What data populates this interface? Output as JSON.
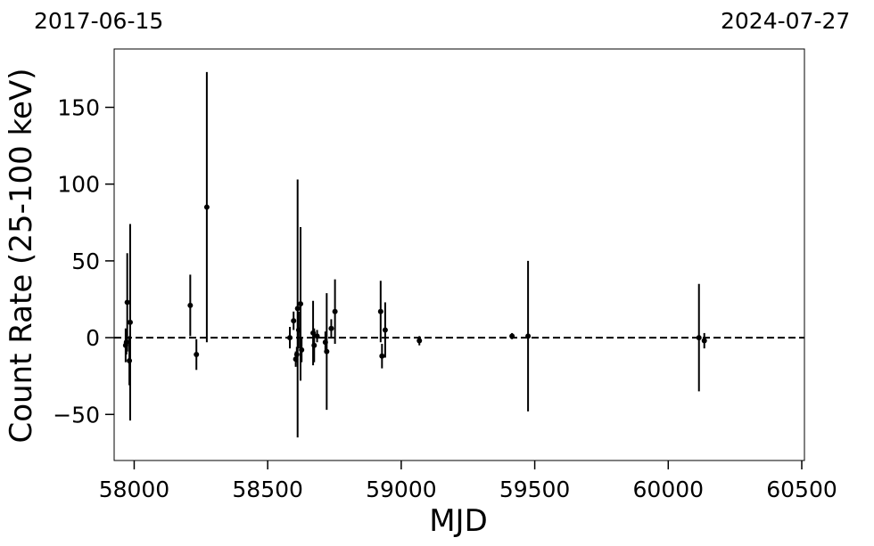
{
  "chart_data": {
    "type": "scatter",
    "xlabel": "MJD",
    "ylabel": "Count Rate (25-100 keV)",
    "top_dates": {
      "left": "2017-06-15",
      "right": "2024-07-27"
    },
    "xlim": [
      57925,
      60510
    ],
    "ylim": [
      -80,
      188
    ],
    "xticks": [
      58000,
      58500,
      59000,
      59500,
      60000,
      60500
    ],
    "xtick_labels": [
      "58000",
      "58500",
      "59000",
      "59500",
      "60000",
      "60500"
    ],
    "yticks": [
      -50,
      0,
      50,
      100,
      150
    ],
    "ytick_labels": [
      "−50",
      "0",
      "50",
      "100",
      "150"
    ],
    "reference_line": {
      "y": 0,
      "style": "dashed"
    },
    "grid": false,
    "points": [
      {
        "x": 57968,
        "y": -5,
        "err": 11
      },
      {
        "x": 57971,
        "y": -3,
        "err": 8
      },
      {
        "x": 57974,
        "y": 23,
        "err": 32
      },
      {
        "x": 57982,
        "y": -15,
        "err": 16
      },
      {
        "x": 57985,
        "y": 10,
        "err": 64
      },
      {
        "x": 58210,
        "y": 21,
        "err": 20
      },
      {
        "x": 58233,
        "y": -11,
        "err": 10
      },
      {
        "x": 58272,
        "y": 85,
        "err": 88
      },
      {
        "x": 58583,
        "y": 0,
        "err": 7
      },
      {
        "x": 58597,
        "y": 11,
        "err": 6
      },
      {
        "x": 58605,
        "y": -14,
        "err": 5
      },
      {
        "x": 58609,
        "y": -11,
        "err": 5
      },
      {
        "x": 58612,
        "y": 19,
        "err": 84
      },
      {
        "x": 58616,
        "y": 5,
        "err": 12
      },
      {
        "x": 58623,
        "y": 22,
        "err": 50
      },
      {
        "x": 58627,
        "y": -8,
        "err": 8
      },
      {
        "x": 58670,
        "y": 3,
        "err": 21
      },
      {
        "x": 58674,
        "y": -5,
        "err": 11
      },
      {
        "x": 58685,
        "y": 1,
        "err": 4
      },
      {
        "x": 58716,
        "y": -3,
        "err": 7
      },
      {
        "x": 58721,
        "y": -9,
        "err": 38
      },
      {
        "x": 58738,
        "y": 6,
        "err": 6
      },
      {
        "x": 58752,
        "y": 17,
        "err": 21
      },
      {
        "x": 58923,
        "y": 17,
        "err": 20
      },
      {
        "x": 58928,
        "y": -12,
        "err": 8
      },
      {
        "x": 58940,
        "y": 5,
        "err": 18
      },
      {
        "x": 59068,
        "y": -2,
        "err": 3
      },
      {
        "x": 59415,
        "y": 1,
        "err": 2
      },
      {
        "x": 59475,
        "y": 1,
        "err": 49
      },
      {
        "x": 60115,
        "y": 0,
        "err": 35
      },
      {
        "x": 60135,
        "y": -2,
        "err": 5
      }
    ]
  }
}
